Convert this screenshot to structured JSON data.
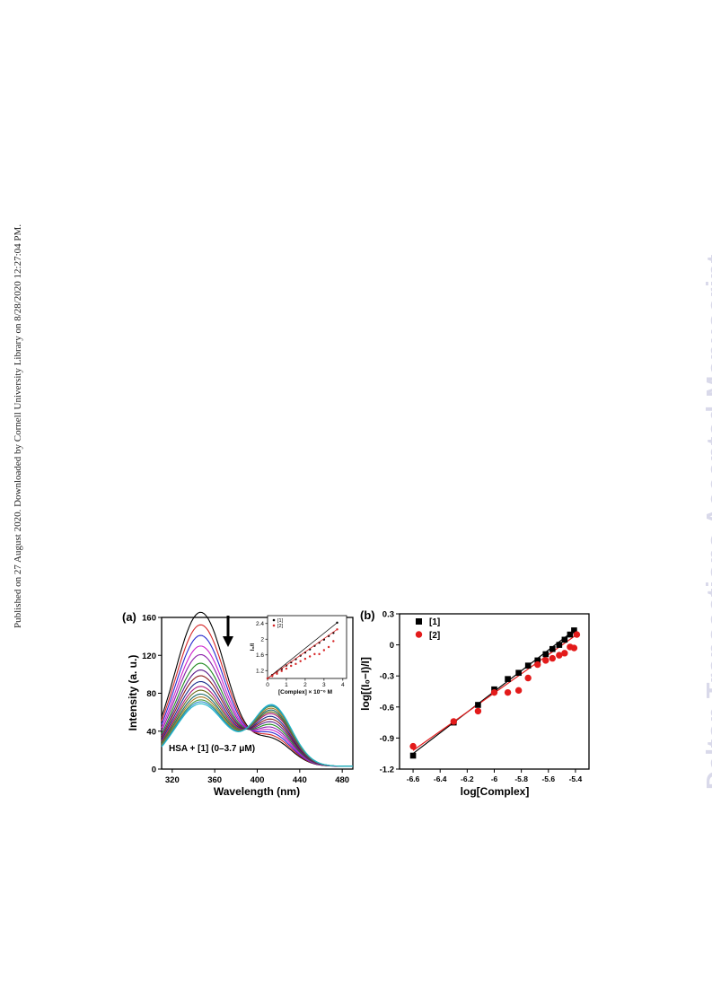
{
  "side_note": "Published on 27 August 2020. Downloaded by Cornell University Library on 8/28/2020 12:27:04 PM.",
  "watermark": "Dalton Transactions Accepted Manuscript",
  "chart_data": [
    {
      "panel": "(a)",
      "type": "line",
      "xlabel": "Wavelength (nm)",
      "ylabel": "Intensity (a. u.)",
      "xlim": [
        310,
        490
      ],
      "ylim": [
        0,
        160
      ],
      "xticks": [
        320,
        360,
        400,
        440,
        480
      ],
      "yticks": [
        0,
        40,
        80,
        120,
        160
      ],
      "annotation": "HSA + [1] (0–3.7 μM)",
      "series_colors": [
        "#000000",
        "#d62728",
        "#2a2acf",
        "#cc22cc",
        "#8a1ca8",
        "#1f8a1f",
        "#5a1a8a",
        "#8b1a1a",
        "#1a2a8a",
        "#b0187a",
        "#6b6b1a",
        "#1a6a6a",
        "#a8782a",
        "#4a9a3a",
        "#2a8acb",
        "#22b8c8"
      ],
      "series": [
        {
          "peak1": 161,
          "peak2": 27
        },
        {
          "peak1": 148,
          "peak2": 30
        },
        {
          "peak1": 137,
          "peak2": 33
        },
        {
          "peak1": 126,
          "peak2": 36
        },
        {
          "peak1": 117,
          "peak2": 39
        },
        {
          "peak1": 108,
          "peak2": 42
        },
        {
          "peak1": 101,
          "peak2": 45
        },
        {
          "peak1": 95,
          "peak2": 48
        },
        {
          "peak1": 89,
          "peak2": 51
        },
        {
          "peak1": 84,
          "peak2": 54
        },
        {
          "peak1": 80,
          "peak2": 56
        },
        {
          "peak1": 76,
          "peak2": 58
        },
        {
          "peak1": 73,
          "peak2": 60
        },
        {
          "peak1": 70,
          "peak2": 62
        },
        {
          "peak1": 68,
          "peak2": 63
        },
        {
          "peak1": 66,
          "peak2": 64
        }
      ],
      "inset": {
        "type": "scatter",
        "xlabel": "[Complex] × 10⁻⁶ M",
        "ylabel": "I₀/I",
        "xlim": [
          0,
          4.2
        ],
        "ylim": [
          1.0,
          2.6
        ],
        "xticks": [
          0,
          1,
          2,
          3,
          4
        ],
        "yticks": [
          1.2,
          1.6,
          2.0,
          2.4
        ],
        "series": [
          {
            "name": "[1]",
            "color": "#000000",
            "x": [
              0,
              0.25,
              0.5,
              0.75,
              1.0,
              1.25,
              1.5,
              1.75,
              2.0,
              2.25,
              2.5,
              2.75,
              3.0,
              3.25,
              3.5,
              3.7
            ],
            "y": [
              1.0,
              1.09,
              1.17,
              1.24,
              1.33,
              1.41,
              1.49,
              1.58,
              1.66,
              1.74,
              1.83,
              1.91,
              1.99,
              2.08,
              2.16,
              2.42
            ]
          },
          {
            "name": "[2]",
            "color": "#d62728",
            "x": [
              0,
              0.25,
              0.5,
              0.75,
              1.0,
              1.25,
              1.5,
              1.75,
              2.0,
              2.25,
              2.5,
              2.75,
              3.0,
              3.25,
              3.5,
              3.7
            ],
            "y": [
              1.0,
              1.06,
              1.12,
              1.19,
              1.25,
              1.32,
              1.37,
              1.44,
              1.5,
              1.56,
              1.62,
              1.62,
              1.72,
              1.8,
              1.95,
              2.25
            ]
          }
        ]
      }
    },
    {
      "panel": "(b)",
      "type": "scatter",
      "xlabel": "log[Complex]",
      "ylabel": "log[(I₀−I)/I]",
      "xlim": [
        -6.7,
        -5.3
      ],
      "ylim": [
        -1.2,
        0.3
      ],
      "xticks": [
        -6.6,
        -6.4,
        -6.2,
        -6.0,
        -5.8,
        -5.6,
        -5.4
      ],
      "yticks": [
        -1.2,
        -0.9,
        -0.6,
        -0.3,
        0.0,
        0.3
      ],
      "legend": [
        "[1]",
        "[2]"
      ],
      "series": [
        {
          "name": "[1]",
          "color": "#000000",
          "marker": "square",
          "x": [
            -6.6,
            -6.3,
            -6.12,
            -6.0,
            -5.9,
            -5.82,
            -5.75,
            -5.68,
            -5.62,
            -5.57,
            -5.52,
            -5.48,
            -5.44,
            -5.41
          ],
          "y": [
            -1.07,
            -0.75,
            -0.58,
            -0.43,
            -0.33,
            -0.27,
            -0.2,
            -0.15,
            -0.09,
            -0.04,
            0.0,
            0.05,
            0.1,
            0.14
          ]
        },
        {
          "name": "[2]",
          "color": "#e31b1b",
          "marker": "circle",
          "x": [
            -6.6,
            -6.3,
            -6.12,
            -6.0,
            -5.9,
            -5.82,
            -5.75,
            -5.68,
            -5.62,
            -5.57,
            -5.52,
            -5.48,
            -5.44,
            -5.41,
            -5.39
          ],
          "y": [
            -0.98,
            -0.74,
            -0.64,
            -0.46,
            -0.46,
            -0.44,
            -0.32,
            -0.19,
            -0.15,
            -0.13,
            -0.1,
            -0.08,
            -0.02,
            -0.03,
            0.1
          ]
        }
      ],
      "fits": [
        {
          "series": "[1]",
          "color": "#000000",
          "x": [
            -6.6,
            -5.41
          ],
          "y": [
            -1.05,
            0.14
          ]
        },
        {
          "series": "[2]",
          "color": "#e31b1b",
          "x": [
            -6.6,
            -5.39
          ],
          "y": [
            -1.02,
            0.1
          ]
        }
      ]
    }
  ]
}
